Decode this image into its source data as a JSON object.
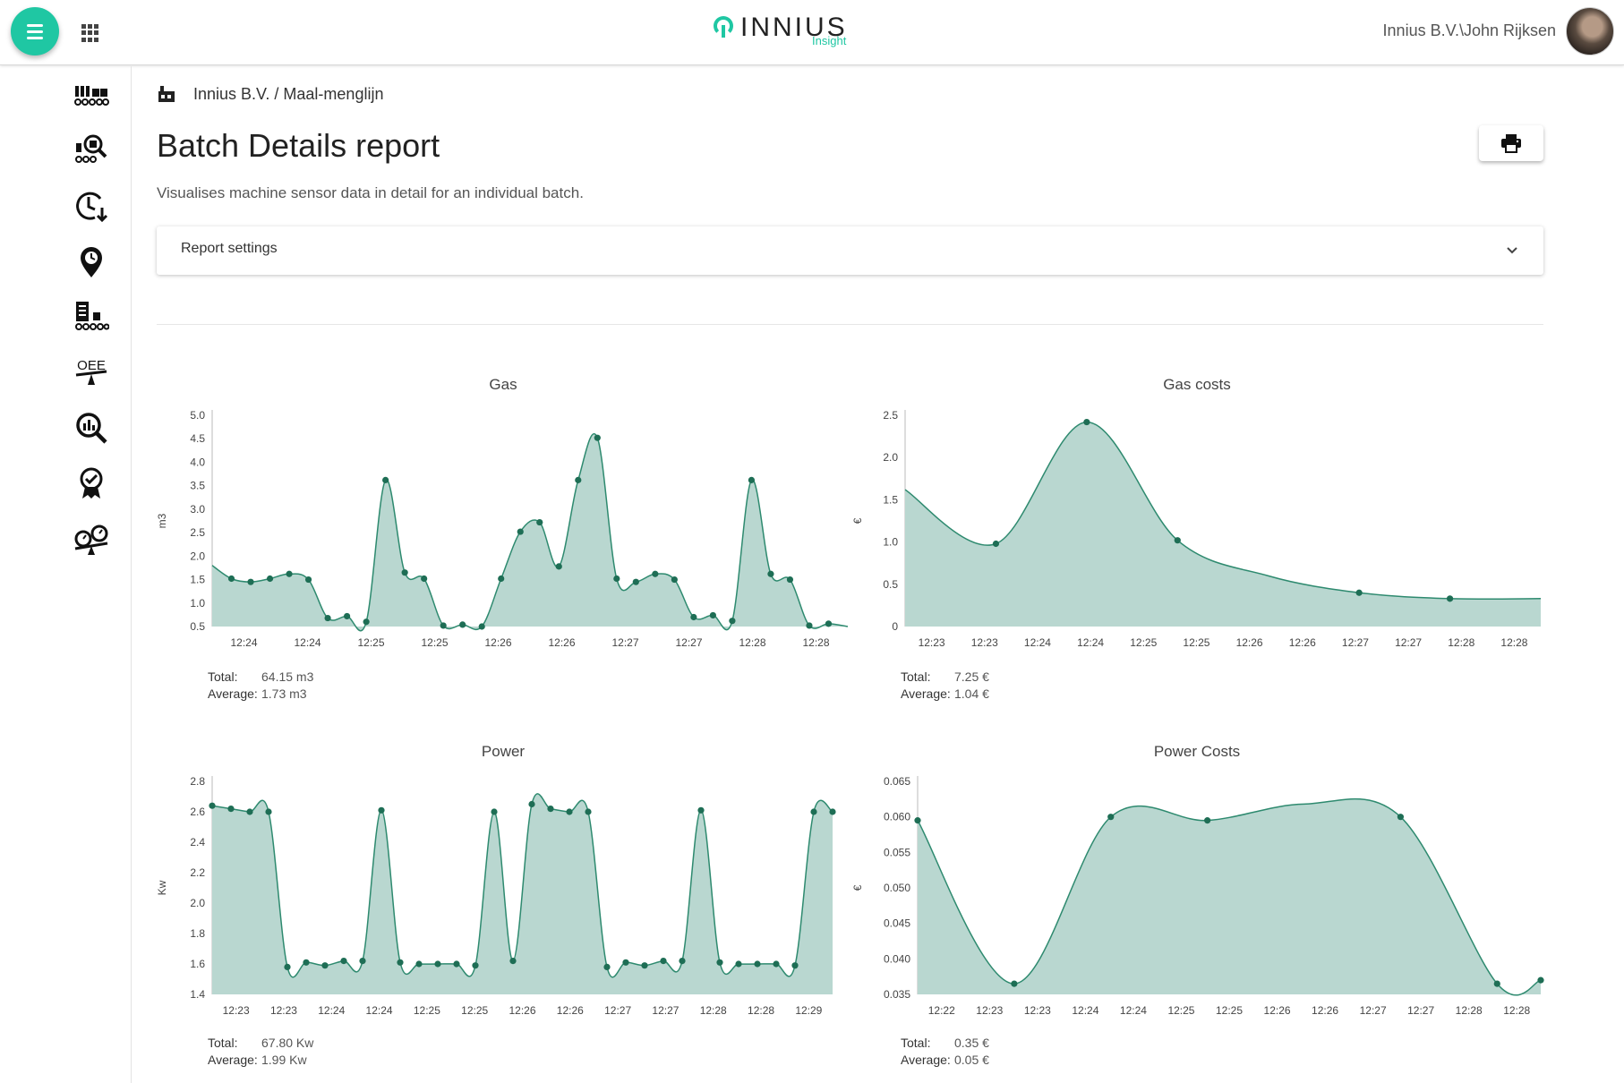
{
  "user": {
    "name": "Innius B.V.\\John Rijksen"
  },
  "logo": {
    "text": "INNIUS",
    "sub": "Insight"
  },
  "breadcrumb": "Innius B.V. / Maal-menglijn",
  "page": {
    "title": "Batch Details report",
    "subtitle": "Visualises machine sensor data in detail for an individual batch."
  },
  "report_settings": {
    "label": "Report settings"
  },
  "rail_icons": [
    "machines-line-icon",
    "machine-search-icon",
    "history-clock-icon",
    "location-clock-icon",
    "machine-report-icon",
    "oee-icon",
    "analytics-search-icon",
    "quality-badge-icon",
    "compare-gauges-icon"
  ],
  "colors": {
    "accent": "#1fc7a3",
    "series_line": "#2e8a6f",
    "series_fill": "#b9d7d0",
    "series_point": "#1e6e55"
  },
  "summaries": [
    {
      "total_label": "Total:",
      "total": "64.15 m3",
      "average_label": "Average:",
      "average": "1.73 m3"
    },
    {
      "total_label": "Total:",
      "total": "7.25 €",
      "average_label": "Average:",
      "average": "1.04 €"
    },
    {
      "total_label": "Total:",
      "total": "67.80 Kw",
      "average_label": "Average:",
      "average": "1.99 Kw"
    },
    {
      "total_label": "Total:",
      "total": "0.35 €",
      "average_label": "Average:",
      "average": "0.05 €"
    }
  ],
  "chart_data": [
    {
      "type": "area",
      "title": "Gas",
      "xlabel": "",
      "ylabel": "m3",
      "ylim": [
        0.5,
        5.0
      ],
      "yticks": [
        "0.5",
        "1.0",
        "1.5",
        "2.0",
        "2.5",
        "3.0",
        "3.5",
        "4.0",
        "4.5",
        "5.0"
      ],
      "xticks": [
        "12:24",
        "12:24",
        "12:25",
        "12:25",
        "12:26",
        "12:26",
        "12:27",
        "12:27",
        "12:28",
        "12:28"
      ],
      "y": [
        1.8,
        1.52,
        1.45,
        1.52,
        1.62,
        1.5,
        0.68,
        0.72,
        0.6,
        3.62,
        1.65,
        1.52,
        0.52,
        0.54,
        0.5,
        1.52,
        2.52,
        2.72,
        1.78,
        3.62,
        4.52,
        1.52,
        1.45,
        1.62,
        1.5,
        0.7,
        0.74,
        0.62,
        3.62,
        1.62,
        1.5,
        0.52,
        0.56,
        0.5
      ],
      "marker_first": 1,
      "marker_last": 32
    },
    {
      "type": "area",
      "title": "Gas costs",
      "xlabel": "",
      "ylabel": "€",
      "ylim": [
        0,
        2.5
      ],
      "yticks": [
        "0",
        "0.5",
        "1.0",
        "1.5",
        "2.0",
        "2.5"
      ],
      "xticks": [
        "12:23",
        "12:23",
        "12:24",
        "12:24",
        "12:25",
        "12:25",
        "12:26",
        "12:26",
        "12:27",
        "12:27",
        "12:28",
        "12:28"
      ],
      "y": [
        1.62,
        0.98,
        2.42,
        1.02,
        0.6,
        0.4,
        0.33,
        0.33
      ],
      "markers": [
        1,
        2,
        3,
        5,
        6
      ]
    },
    {
      "type": "area",
      "title": "Power",
      "xlabel": "",
      "ylabel": "Kw",
      "ylim": [
        1.4,
        2.8
      ],
      "yticks": [
        "1.4",
        "1.6",
        "1.8",
        "2.0",
        "2.2",
        "2.4",
        "2.6",
        "2.8"
      ],
      "xticks": [
        "12:23",
        "12:23",
        "12:24",
        "12:24",
        "12:25",
        "12:25",
        "12:26",
        "12:26",
        "12:27",
        "12:27",
        "12:28",
        "12:28",
        "12:29"
      ],
      "y": [
        2.64,
        2.62,
        2.6,
        2.6,
        1.58,
        1.61,
        1.59,
        1.62,
        1.62,
        2.61,
        1.61,
        1.6,
        1.6,
        1.6,
        1.59,
        2.6,
        1.62,
        2.65,
        2.62,
        2.6,
        2.6,
        1.58,
        1.61,
        1.59,
        1.62,
        1.62,
        2.61,
        1.61,
        1.6,
        1.6,
        1.6,
        1.59,
        2.6,
        2.6
      ]
    },
    {
      "type": "area",
      "title": "Power Costs",
      "xlabel": "",
      "ylabel": "€",
      "ylim": [
        0.035,
        0.065
      ],
      "yticks": [
        "0.035",
        "0.040",
        "0.045",
        "0.050",
        "0.055",
        "0.060",
        "0.065"
      ],
      "xticks": [
        "12:22",
        "12:23",
        "12:23",
        "12:24",
        "12:24",
        "12:25",
        "12:25",
        "12:26",
        "12:26",
        "12:27",
        "12:27",
        "12:28",
        "12:28"
      ],
      "y": [
        0.0595,
        0.0365,
        0.06,
        0.0595,
        0.06,
        0.0365,
        0.037
      ],
      "x": [
        0,
        0.155,
        0.31,
        0.465,
        0.775,
        0.93,
        1.0
      ],
      "extra_curve": [
        [
          0.62,
          0.0618
        ]
      ]
    }
  ]
}
